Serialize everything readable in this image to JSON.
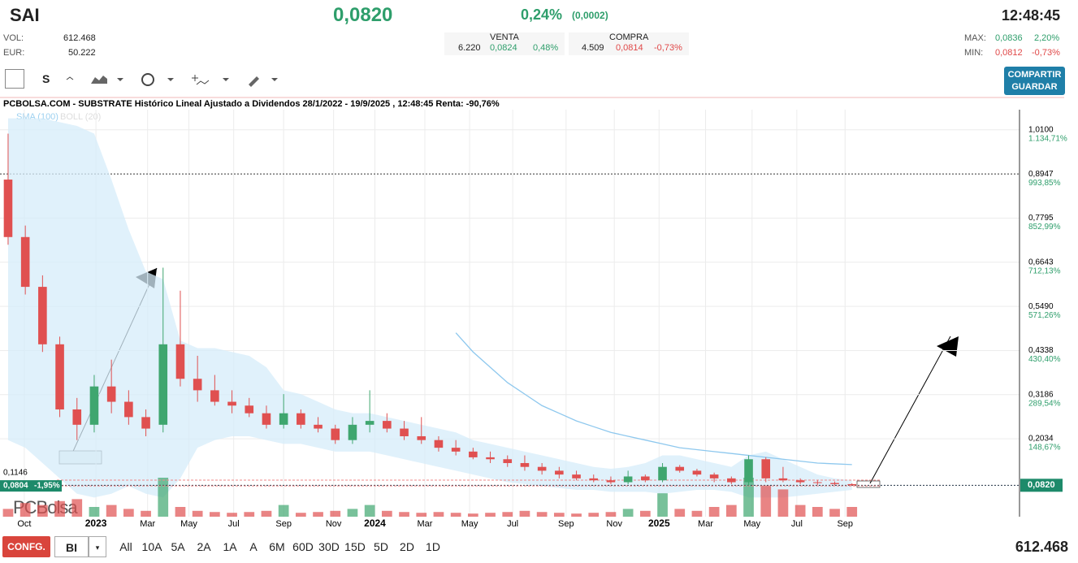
{
  "header": {
    "symbol": "SAI",
    "price": "0,0820",
    "change_pct": "0,24%",
    "change_abs": "(0,0002)",
    "time": "12:48:45",
    "vol_label": "VOL:",
    "vol": "612.468",
    "eur_label": "EUR:",
    "eur": "50.222",
    "venta_label": "VENTA",
    "venta": [
      "6.220",
      "0,0824",
      "0,48%"
    ],
    "compra_label": "COMPRA",
    "compra": [
      "4.509",
      "0,0814",
      "-0,73%"
    ],
    "max_label": "MAX:",
    "max": [
      "0,0836",
      "2,20%"
    ],
    "min_label": "MIN:",
    "min": [
      "0,0812",
      "-0,73%"
    ]
  },
  "toolbar": {
    "period": "S",
    "share": "COMPARTIR",
    "save": "GUARDAR"
  },
  "footer": {
    "config": "CONFG.",
    "mode": "BI",
    "ranges": [
      "All",
      "10A",
      "5A",
      "2A",
      "1A",
      "A",
      "6M",
      "60D",
      "30D",
      "15D",
      "5D",
      "2D",
      "1D"
    ],
    "volume": "612.468"
  },
  "chart_data": {
    "type": "candlestick",
    "title": "PCBOLSA.COM - SUBSTRATE Histórico Lineal Ajustado a Dividendos 28/1/2022 - 19/9/2025 , 12:48:45 Renta: -90,76%",
    "indicators": [
      "SMA (100)",
      "BOLL (20)"
    ],
    "logo": "PCBolsa",
    "open": [
      0.88,
      0.73,
      0.6,
      0.45,
      0.28,
      0.24,
      0.34,
      0.3,
      0.26,
      0.24,
      0.45,
      0.36,
      0.33,
      0.3,
      0.29,
      0.27,
      0.24,
      0.27,
      0.24,
      0.23,
      0.2,
      0.24,
      0.25,
      0.23,
      0.21,
      0.2,
      0.18,
      0.17,
      0.155,
      0.15,
      0.14,
      0.13,
      0.12,
      0.11,
      0.1,
      0.095,
      0.09,
      0.105,
      0.095,
      0.13,
      0.12,
      0.11,
      0.1,
      0.09,
      0.15,
      0.1,
      0.095,
      0.09,
      0.088,
      0.085
    ],
    "high": [
      1.0,
      0.76,
      0.63,
      0.47,
      0.31,
      0.37,
      0.41,
      0.33,
      0.28,
      0.65,
      0.59,
      0.42,
      0.37,
      0.33,
      0.31,
      0.29,
      0.32,
      0.28,
      0.26,
      0.24,
      0.26,
      0.33,
      0.27,
      0.25,
      0.26,
      0.21,
      0.2,
      0.18,
      0.17,
      0.16,
      0.16,
      0.14,
      0.13,
      0.12,
      0.11,
      0.105,
      0.12,
      0.11,
      0.14,
      0.135,
      0.125,
      0.115,
      0.105,
      0.16,
      0.155,
      0.13,
      0.1,
      0.095,
      0.092,
      0.087
    ],
    "low": [
      0.71,
      0.58,
      0.43,
      0.26,
      0.2,
      0.22,
      0.27,
      0.24,
      0.21,
      0.22,
      0.34,
      0.3,
      0.29,
      0.27,
      0.26,
      0.23,
      0.23,
      0.23,
      0.22,
      0.19,
      0.19,
      0.22,
      0.22,
      0.2,
      0.19,
      0.17,
      0.16,
      0.15,
      0.14,
      0.13,
      0.12,
      0.11,
      0.1,
      0.095,
      0.09,
      0.085,
      0.085,
      0.09,
      0.09,
      0.115,
      0.105,
      0.09,
      0.085,
      0.08,
      0.09,
      0.09,
      0.085,
      0.083,
      0.082,
      0.081
    ],
    "close": [
      0.73,
      0.6,
      0.45,
      0.28,
      0.24,
      0.34,
      0.3,
      0.26,
      0.23,
      0.45,
      0.36,
      0.33,
      0.3,
      0.29,
      0.27,
      0.24,
      0.27,
      0.24,
      0.23,
      0.2,
      0.24,
      0.25,
      0.23,
      0.21,
      0.2,
      0.18,
      0.17,
      0.155,
      0.15,
      0.14,
      0.13,
      0.12,
      0.11,
      0.1,
      0.095,
      0.09,
      0.105,
      0.095,
      0.13,
      0.12,
      0.11,
      0.1,
      0.09,
      0.15,
      0.1,
      0.095,
      0.09,
      0.088,
      0.085,
      0.082
    ],
    "volume": [
      20,
      35,
      30,
      40,
      45,
      25,
      30,
      20,
      15,
      100,
      25,
      15,
      12,
      10,
      12,
      15,
      30,
      10,
      12,
      15,
      20,
      30,
      15,
      12,
      10,
      12,
      10,
      8,
      10,
      12,
      15,
      12,
      10,
      8,
      10,
      12,
      20,
      15,
      60,
      20,
      15,
      25,
      30,
      100,
      80,
      70,
      30,
      25,
      20,
      25
    ],
    "sma": [
      null,
      null,
      null,
      null,
      null,
      null,
      null,
      null,
      null,
      null,
      null,
      null,
      null,
      null,
      null,
      null,
      null,
      null,
      null,
      null,
      null,
      null,
      null,
      null,
      null,
      null,
      0.48,
      0.43,
      0.39,
      0.35,
      0.32,
      0.29,
      0.27,
      0.25,
      0.235,
      0.22,
      0.21,
      0.2,
      0.19,
      0.18,
      0.175,
      0.17,
      0.165,
      0.16,
      0.155,
      0.15,
      0.145,
      0.14,
      0.138,
      0.136
    ],
    "boll_upper": [
      1.04,
      1.04,
      1.04,
      1.03,
      1.02,
      1.0,
      0.88,
      0.75,
      0.64,
      0.62,
      0.46,
      0.44,
      0.44,
      0.43,
      0.42,
      0.39,
      0.33,
      0.32,
      0.3,
      0.28,
      0.27,
      0.27,
      0.26,
      0.25,
      0.24,
      0.23,
      0.22,
      0.2,
      0.19,
      0.18,
      0.17,
      0.16,
      0.15,
      0.14,
      0.13,
      0.125,
      0.13,
      0.14,
      0.16,
      0.16,
      0.15,
      0.14,
      0.13,
      0.16,
      0.17,
      0.15,
      0.13,
      0.11,
      0.1,
      0.095
    ],
    "boll_lower": [
      0.2,
      0.18,
      0.14,
      0.1,
      0.06,
      0.05,
      0.06,
      0.08,
      0.06,
      0.05,
      0.1,
      0.18,
      0.2,
      0.21,
      0.21,
      0.2,
      0.19,
      0.19,
      0.18,
      0.17,
      0.17,
      0.17,
      0.16,
      0.15,
      0.14,
      0.13,
      0.12,
      0.11,
      0.1,
      0.09,
      0.085,
      0.08,
      0.075,
      0.07,
      0.07,
      0.065,
      0.065,
      0.065,
      0.06,
      0.065,
      0.07,
      0.07,
      0.065,
      0.05,
      0.05,
      0.05,
      0.055,
      0.06,
      0.065,
      0.07
    ],
    "up_color": "#3fa66f",
    "down_color": "#e05050",
    "sma_color": "#8ec8ee",
    "boll_color": "#d6ecfa",
    "ylim": [
      0,
      1.0625
    ],
    "xlim": [
      -0.47,
      58.73
    ],
    "yticks": [
      {
        "value": 1.01,
        "label": "1,0100"
      },
      {
        "value": 0.8947,
        "label": "0,8947"
      },
      {
        "value": 0.7795,
        "label": "0,7795"
      },
      {
        "value": 0.6643,
        "label": "0,6643"
      },
      {
        "value": 0.549,
        "label": "0,5490"
      },
      {
        "value": 0.4338,
        "label": "0,4338"
      },
      {
        "value": 0.3186,
        "label": "0,3186"
      },
      {
        "value": 0.2034,
        "label": "0,2034"
      }
    ],
    "ytick_returns": [
      "1.134,71%",
      "993,85%",
      "852,99%",
      "712,13%",
      "571,26%",
      "430,40%",
      "289,54%",
      "148,67%"
    ],
    "xticks": [
      {
        "value": 0.94,
        "label": "Oct"
      },
      {
        "value": 5.1,
        "label": "2023"
      },
      {
        "value": 8.1,
        "label": "Mar"
      },
      {
        "value": 10.5,
        "label": "May"
      },
      {
        "value": 13.1,
        "label": "Jul"
      },
      {
        "value": 16.0,
        "label": "Sep"
      },
      {
        "value": 18.9,
        "label": "Nov"
      },
      {
        "value": 21.3,
        "label": "2024"
      },
      {
        "value": 24.2,
        "label": "Mar"
      },
      {
        "value": 26.8,
        "label": "May"
      },
      {
        "value": 29.3,
        "label": "Jul"
      },
      {
        "value": 32.4,
        "label": "Sep"
      },
      {
        "value": 35.2,
        "label": "Nov"
      },
      {
        "value": 37.8,
        "label": "2025"
      },
      {
        "value": 40.5,
        "label": "Mar"
      },
      {
        "value": 43.2,
        "label": "May"
      },
      {
        "value": 45.8,
        "label": "Jul"
      },
      {
        "value": 48.6,
        "label": "Sep"
      }
    ],
    "last_price": {
      "value": 0.082,
      "label": "0,0820"
    },
    "marker_high": {
      "value": 0.1146,
      "label": "0,1146"
    },
    "marker_low": {
      "value": 0.0804,
      "label": "0,0804",
      "change": "-1,95%"
    }
  }
}
